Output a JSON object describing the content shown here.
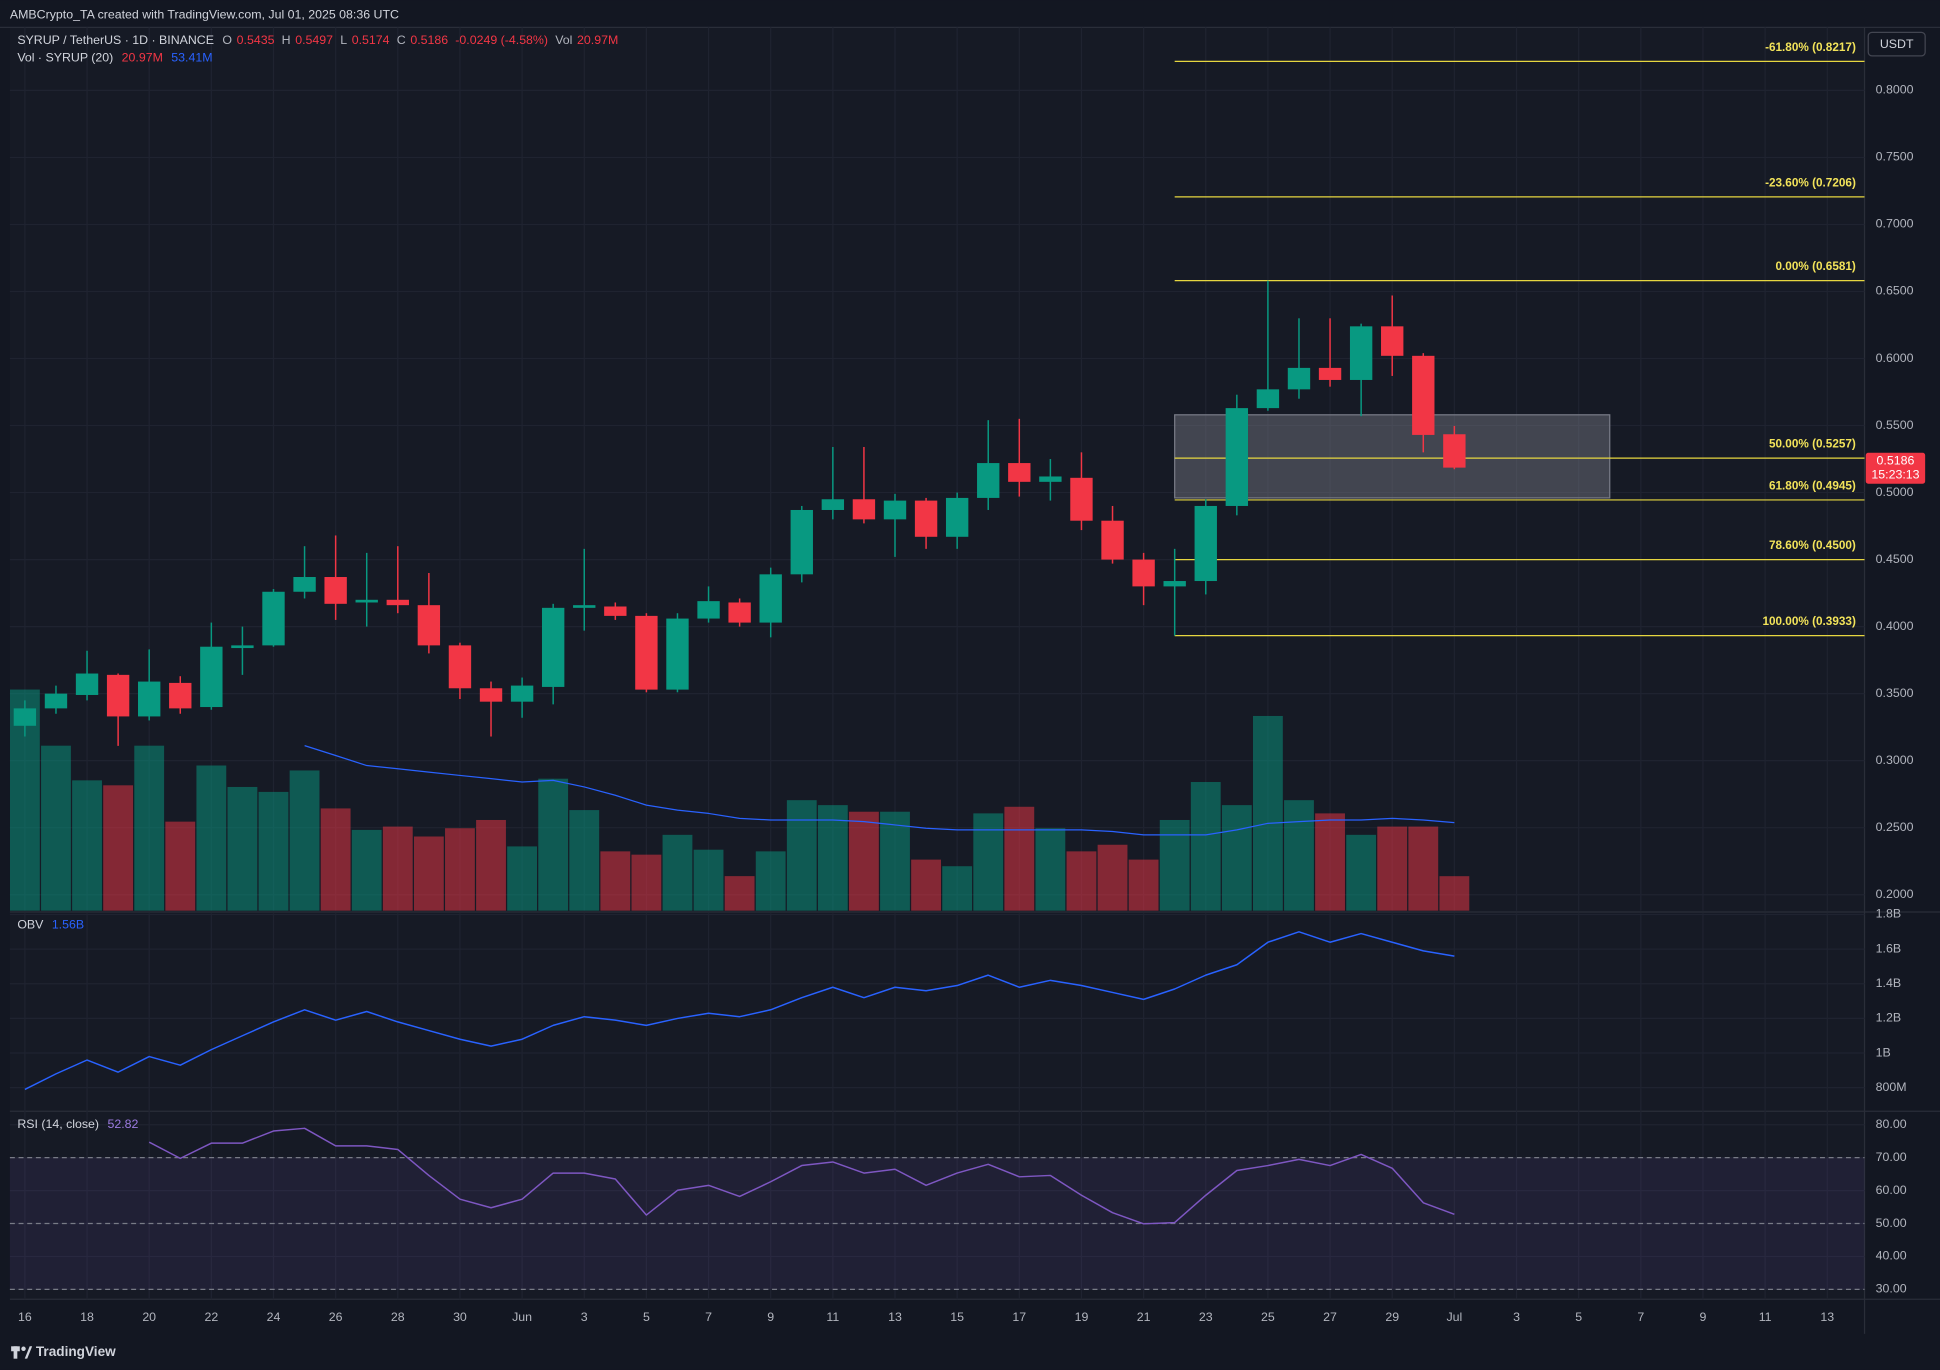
{
  "header": "AMBCrypto_TA created with TradingView.com, Jul 01, 2025 08:36 UTC",
  "footer": "TradingView",
  "chart_data": [
    {
      "type": "candlestick",
      "currency": "USDT",
      "legend": {
        "symbol": "SYRUP / TetherUS · 1D · BINANCE",
        "open_label": "O",
        "open": "0.5435",
        "high_label": "H",
        "high": "0.5497",
        "low_label": "L",
        "low": "0.5174",
        "close_label": "C",
        "close": "0.5186",
        "change": "-0.0249 (-4.58%)",
        "volume_label": "Vol",
        "volume": "20.97M"
      },
      "volume_legend": {
        "name": "Vol · SYRUP (20)",
        "volume": "20.97M",
        "average": "53.41M"
      },
      "countdown": "15:23:13",
      "x": [
        "May 16",
        "May 17",
        "May 18",
        "May 19",
        "May 20",
        "May 21",
        "May 22",
        "May 23",
        "May 24",
        "May 25",
        "May 26",
        "May 27",
        "May 28",
        "May 29",
        "May 30",
        "May 31",
        "Jun 1",
        "Jun 2",
        "Jun 3",
        "Jun 4",
        "Jun 5",
        "Jun 6",
        "Jun 7",
        "Jun 8",
        "Jun 9",
        "Jun 10",
        "Jun 11",
        "Jun 12",
        "Jun 13",
        "Jun 14",
        "Jun 15",
        "Jun 16",
        "Jun 17",
        "Jun 18",
        "Jun 19",
        "Jun 20",
        "Jun 21",
        "Jun 22",
        "Jun 23",
        "Jun 24",
        "Jun 25",
        "Jun 26",
        "Jun 27",
        "Jun 28",
        "Jun 29",
        "Jun 30",
        "Jul 1"
      ],
      "open": [
        0.326,
        0.339,
        0.349,
        0.364,
        0.333,
        0.358,
        0.34,
        0.384,
        0.386,
        0.426,
        0.437,
        0.418,
        0.42,
        0.416,
        0.386,
        0.354,
        0.344,
        0.355,
        0.414,
        0.415,
        0.408,
        0.353,
        0.406,
        0.418,
        0.403,
        0.439,
        0.487,
        0.495,
        0.48,
        0.494,
        0.467,
        0.496,
        0.522,
        0.508,
        0.511,
        0.479,
        0.45,
        0.43,
        0.434,
        0.49,
        0.563,
        0.577,
        0.593,
        0.584,
        0.624,
        0.602,
        0.5435
      ],
      "high": [
        0.345,
        0.356,
        0.382,
        0.365,
        0.383,
        0.363,
        0.403,
        0.4,
        0.428,
        0.46,
        0.468,
        0.455,
        0.46,
        0.44,
        0.388,
        0.359,
        0.362,
        0.417,
        0.458,
        0.418,
        0.41,
        0.41,
        0.43,
        0.421,
        0.444,
        0.49,
        0.534,
        0.534,
        0.499,
        0.496,
        0.5,
        0.554,
        0.555,
        0.525,
        0.53,
        0.49,
        0.455,
        0.458,
        0.495,
        0.573,
        0.6581,
        0.63,
        0.63,
        0.626,
        0.647,
        0.604,
        0.5497
      ],
      "low": [
        0.318,
        0.335,
        0.345,
        0.311,
        0.33,
        0.335,
        0.338,
        0.364,
        0.385,
        0.421,
        0.405,
        0.4,
        0.41,
        0.38,
        0.346,
        0.318,
        0.332,
        0.342,
        0.397,
        0.405,
        0.351,
        0.351,
        0.403,
        0.4,
        0.392,
        0.433,
        0.48,
        0.477,
        0.452,
        0.458,
        0.458,
        0.487,
        0.497,
        0.494,
        0.472,
        0.447,
        0.416,
        0.3933,
        0.424,
        0.483,
        0.561,
        0.57,
        0.579,
        0.557,
        0.587,
        0.53,
        0.5174
      ],
      "close": [
        0.339,
        0.35,
        0.365,
        0.333,
        0.359,
        0.339,
        0.385,
        0.386,
        0.426,
        0.437,
        0.417,
        0.42,
        0.416,
        0.386,
        0.354,
        0.344,
        0.356,
        0.414,
        0.416,
        0.408,
        0.353,
        0.406,
        0.419,
        0.403,
        0.439,
        0.487,
        0.495,
        0.48,
        0.494,
        0.467,
        0.496,
        0.522,
        0.508,
        0.512,
        0.479,
        0.45,
        0.43,
        0.434,
        0.49,
        0.563,
        0.577,
        0.593,
        0.584,
        0.624,
        0.602,
        0.543,
        0.5186
      ],
      "up_color": "#089981",
      "down_color": "#f23645",
      "volume": [
        134,
        100,
        79,
        76,
        100,
        54,
        88,
        75,
        72,
        85,
        62,
        49,
        51,
        45,
        50,
        55,
        39,
        80,
        61,
        36,
        34,
        46,
        37,
        21,
        36,
        67,
        64,
        60,
        60,
        31,
        27,
        59,
        63,
        50,
        36,
        40,
        31,
        55,
        78,
        64,
        118,
        67,
        59,
        46,
        51,
        51,
        20.97
      ],
      "volume_ylim": [
        0,
        535
      ],
      "volume_opacity": 0.5,
      "volume_ma": [
        null,
        null,
        null,
        null,
        null,
        null,
        null,
        null,
        null,
        100,
        94,
        88,
        86,
        84,
        82,
        80,
        78,
        79,
        75,
        70,
        64,
        61,
        59,
        56,
        55,
        55,
        55,
        54,
        52,
        50,
        49,
        49,
        49,
        49,
        49,
        48,
        46,
        46,
        46,
        49,
        53,
        54,
        55,
        55,
        56,
        55,
        53.41
      ],
      "volume_ma_color": "#2962ff",
      "xlim": [
        "May 15",
        "Jul 14"
      ],
      "xticks": [
        {
          "value": "May 16",
          "label": "16"
        },
        {
          "value": "May 18",
          "label": "18"
        },
        {
          "value": "May 20",
          "label": "20"
        },
        {
          "value": "May 22",
          "label": "22"
        },
        {
          "value": "May 24",
          "label": "24"
        },
        {
          "value": "May 26",
          "label": "26"
        },
        {
          "value": "May 28",
          "label": "28"
        },
        {
          "value": "May 30",
          "label": "30"
        },
        {
          "value": "Jun 1",
          "label": "Jun"
        },
        {
          "value": "Jun 3",
          "label": "3"
        },
        {
          "value": "Jun 5",
          "label": "5"
        },
        {
          "value": "Jun 7",
          "label": "7"
        },
        {
          "value": "Jun 9",
          "label": "9"
        },
        {
          "value": "Jun 11",
          "label": "11"
        },
        {
          "value": "Jun 13",
          "label": "13"
        },
        {
          "value": "Jun 15",
          "label": "15"
        },
        {
          "value": "Jun 17",
          "label": "17"
        },
        {
          "value": "Jun 19",
          "label": "19"
        },
        {
          "value": "Jun 21",
          "label": "21"
        },
        {
          "value": "Jun 23",
          "label": "23"
        },
        {
          "value": "Jun 25",
          "label": "25"
        },
        {
          "value": "Jun 27",
          "label": "27"
        },
        {
          "value": "Jun 29",
          "label": "29"
        },
        {
          "value": "Jul 1",
          "label": "Jul"
        },
        {
          "value": "Jul 3",
          "label": "3"
        },
        {
          "value": "Jul 5",
          "label": "5"
        },
        {
          "value": "Jul 7",
          "label": "7"
        },
        {
          "value": "Jul 9",
          "label": "9"
        },
        {
          "value": "Jul 11",
          "label": "11"
        },
        {
          "value": "Jul 13",
          "label": "13"
        }
      ],
      "ylim": [
        0.188,
        0.847
      ],
      "yticks": [
        {
          "value": 0.8,
          "label": "0.8000"
        },
        {
          "value": 0.75,
          "label": "0.7500"
        },
        {
          "value": 0.7,
          "label": "0.7000"
        },
        {
          "value": 0.65,
          "label": "0.6500"
        },
        {
          "value": 0.6,
          "label": "0.6000"
        },
        {
          "value": 0.55,
          "label": "0.5500"
        },
        {
          "value": 0.5,
          "label": "0.5000"
        },
        {
          "value": 0.45,
          "label": "0.4500"
        },
        {
          "value": 0.4,
          "label": "0.4000"
        },
        {
          "value": 0.35,
          "label": "0.3500"
        },
        {
          "value": 0.3,
          "label": "0.3000"
        },
        {
          "value": 0.25,
          "label": "0.2500"
        },
        {
          "value": 0.2,
          "label": "0.2000"
        }
      ],
      "grid": true,
      "fib_start": "Jun 22",
      "fib_color": "#e6d640",
      "fib_levels": [
        {
          "value": 0.8217,
          "label": "-61.80% (0.8217)"
        },
        {
          "value": 0.7206,
          "label": "-23.60% (0.7206)"
        },
        {
          "value": 0.6581,
          "label": "0.00% (0.6581)"
        },
        {
          "value": 0.5257,
          "label": "50.00% (0.5257)"
        },
        {
          "value": 0.4945,
          "label": "61.80% (0.4945)"
        },
        {
          "value": 0.45,
          "label": "78.60% (0.4500)"
        },
        {
          "value": 0.3933,
          "label": "100.00% (0.3933)"
        }
      ],
      "zone": {
        "start": "Jun 22",
        "end": "Jul 6",
        "top": 0.558,
        "bottom": 0.496,
        "color": "#787b86"
      }
    },
    {
      "type": "line",
      "title": "OBV",
      "legend_value": "1.56B",
      "color": "#2962ff",
      "values": [
        0.79,
        0.88,
        0.96,
        0.89,
        0.98,
        0.93,
        1.02,
        1.1,
        1.18,
        1.25,
        1.19,
        1.24,
        1.18,
        1.13,
        1.08,
        1.04,
        1.08,
        1.16,
        1.21,
        1.19,
        1.16,
        1.2,
        1.23,
        1.21,
        1.25,
        1.32,
        1.38,
        1.32,
        1.38,
        1.36,
        1.39,
        1.45,
        1.38,
        1.42,
        1.39,
        1.35,
        1.31,
        1.37,
        1.45,
        1.51,
        1.64,
        1.7,
        1.64,
        1.69,
        1.64,
        1.59,
        1.56
      ],
      "ylim": [
        0.664,
        1.807
      ],
      "yticks": [
        {
          "value": 1.8,
          "label": "1.8B"
        },
        {
          "value": 1.6,
          "label": "1.6B"
        },
        {
          "value": 1.4,
          "label": "1.4B"
        },
        {
          "value": 1.2,
          "label": "1.2B"
        },
        {
          "value": 1,
          "label": "1B"
        },
        {
          "value": 0.8,
          "label": "800M"
        }
      ],
      "grid": true
    },
    {
      "type": "line",
      "title": "RSI (14, close)",
      "legend_value": "52.82",
      "color": "#7e57c2",
      "values": [
        null,
        null,
        null,
        null,
        74.7,
        69.8,
        74.4,
        74.4,
        78.1,
        78.9,
        73.6,
        73.6,
        72.5,
        64.6,
        57.4,
        54.8,
        57.4,
        65.3,
        65.3,
        63.5,
        52.6,
        60.1,
        61.6,
        58.2,
        62.7,
        67.6,
        68.7,
        65.3,
        66.5,
        61.6,
        65.3,
        68.0,
        64.2,
        64.6,
        58.6,
        53.3,
        49.9,
        50.3,
        58.6,
        66.1,
        67.6,
        69.5,
        67.6,
        71.0,
        66.8,
        56.3,
        52.82
      ],
      "ylim": [
        27,
        84.1
      ],
      "yticks": [
        {
          "value": 80,
          "label": "80.00"
        },
        {
          "value": 70,
          "label": "70.00"
        },
        {
          "value": 60,
          "label": "60.00"
        },
        {
          "value": 50,
          "label": "50.00"
        },
        {
          "value": 40,
          "label": "40.00"
        },
        {
          "value": 30,
          "label": "30.00"
        }
      ],
      "bands": [
        70,
        50,
        30
      ],
      "band_fill": "#7e57c2",
      "grid": true
    }
  ]
}
